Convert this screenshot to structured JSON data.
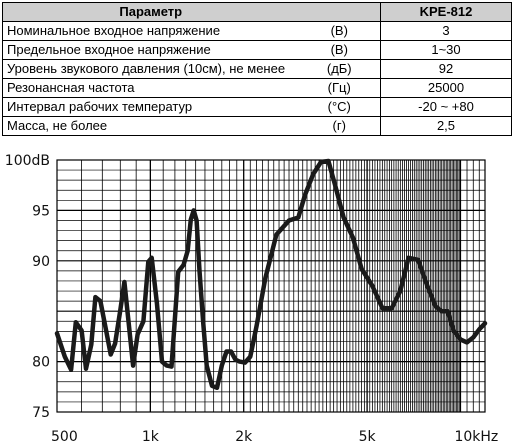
{
  "table": {
    "header": {
      "param": "Параметр",
      "model": "KPE-812"
    },
    "rows": [
      {
        "name": "Номинальное входное напряжение",
        "unit": "(B)",
        "value": "3"
      },
      {
        "name": "Предельное входное напряжение",
        "unit": "(B)",
        "value": "1~30"
      },
      {
        "name": "Уровень звукового давления (10см), не менее",
        "unit": "(дБ)",
        "value": "92"
      },
      {
        "name": "Резонансная частота",
        "unit": "(Гц)",
        "value": "25000"
      },
      {
        "name": "Интервал рабочих температур",
        "unit": "(°C)",
        "value": "-20 ~ +80"
      },
      {
        "name": "Масса, не более",
        "unit": "(г)",
        "value": "2,5"
      }
    ]
  },
  "chart_data": {
    "type": "line",
    "xscale": "log",
    "xlim": [
      500,
      12000
    ],
    "ylim": [
      75,
      100
    ],
    "x_tick_labels": [
      {
        "x": 500,
        "label": "500"
      },
      {
        "x": 1000,
        "label": "1k"
      },
      {
        "x": 2000,
        "label": "2k"
      },
      {
        "x": 5000,
        "label": "5k"
      },
      {
        "x": 10000,
        "label": "10kHz"
      }
    ],
    "y_tick_labels": [
      {
        "y": 100,
        "label": "100dB"
      },
      {
        "y": 95,
        "label": "95"
      },
      {
        "y": 90,
        "label": "90"
      },
      {
        "y": 80,
        "label": "80"
      },
      {
        "y": 75,
        "label": "75"
      }
    ],
    "grid": true,
    "line_color": "#1a1a1a",
    "series": [
      {
        "x": [
          500,
          530,
          555,
          575,
          600,
          620,
          645,
          665,
          690,
          720,
          745,
          770,
          800,
          825,
          850,
          880,
          910,
          950,
          985,
          1010,
          1050,
          1090,
          1130,
          1170,
          1230,
          1280,
          1320,
          1350,
          1380,
          1410,
          1440,
          1480,
          1520,
          1580,
          1640,
          1700,
          1760,
          1820,
          1880,
          1940,
          2020,
          2100,
          2200,
          2350,
          2550,
          2800,
          3000,
          3150,
          3350,
          3550,
          3750,
          3950,
          4200,
          4500,
          4800,
          5200,
          5600,
          6000,
          6400,
          6800,
          7300,
          7800,
          8300,
          8700,
          9100,
          9500,
          10000,
          10500,
          11000,
          11500,
          12000
        ],
        "y": [
          82.8,
          80.5,
          79.2,
          83.9,
          83.1,
          79.3,
          81.7,
          86.4,
          86.0,
          83.1,
          80.7,
          81.8,
          85.1,
          87.9,
          84.0,
          79.6,
          82.7,
          84.0,
          89.9,
          90.3,
          85.8,
          80.0,
          79.6,
          79.5,
          88.9,
          89.6,
          91.0,
          94.1,
          95.0,
          94.0,
          89.0,
          84.0,
          79.6,
          77.6,
          77.4,
          79.6,
          81.0,
          81.0,
          80.2,
          80.0,
          79.9,
          80.5,
          83.5,
          88.3,
          92.6,
          94.0,
          94.3,
          96.5,
          98.6,
          99.8,
          99.9,
          97.4,
          94.3,
          92.3,
          89.2,
          87.5,
          85.3,
          85.3,
          87.0,
          90.3,
          90.1,
          87.6,
          85.5,
          85.0,
          85.0,
          83.1,
          82.2,
          81.9,
          82.4,
          83.2,
          83.8
        ]
      }
    ]
  }
}
